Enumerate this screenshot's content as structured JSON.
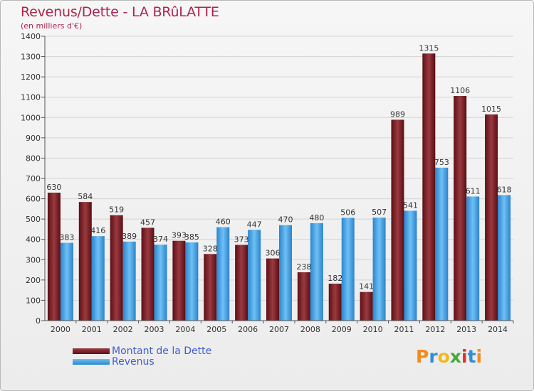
{
  "chart_data": {
    "type": "bar",
    "title": "Revenus/Dette - LA BRûLATTE",
    "subtitle": "(en milliers d'€)",
    "categories": [
      "2000",
      "2001",
      "2002",
      "2003",
      "2004",
      "2005",
      "2006",
      "2007",
      "2008",
      "2009",
      "2010",
      "2011",
      "2012",
      "2013",
      "2014"
    ],
    "series": [
      {
        "name": "Montant de la Dette",
        "color": "#7a1b22",
        "values": [
          630,
          584,
          519,
          457,
          393,
          328,
          373,
          306,
          238,
          182,
          141,
          989,
          1315,
          1106,
          1015
        ]
      },
      {
        "name": "Revenus",
        "color": "#4aa3e6",
        "values": [
          383,
          416,
          389,
          374,
          385,
          460,
          447,
          470,
          480,
          506,
          507,
          541,
          753,
          611,
          618
        ]
      }
    ],
    "ylim": [
      0,
      1400
    ],
    "yticks": [
      0,
      100,
      200,
      300,
      400,
      500,
      600,
      700,
      800,
      900,
      1000,
      1100,
      1200,
      1300,
      1400
    ],
    "grid": true,
    "legend": "bottom-left"
  },
  "logo": {
    "text": "Proxiti",
    "letters": [
      {
        "ch": "P",
        "color": "#f28c1e"
      },
      {
        "ch": "r",
        "color": "#2e8fd6"
      },
      {
        "ch": "o",
        "color": "#f5b81c"
      },
      {
        "ch": "x",
        "color": "#45a93c"
      },
      {
        "ch": "i",
        "color": "#d8332c"
      },
      {
        "ch": "t",
        "color": "#2e8fd6"
      },
      {
        "ch": "i",
        "color": "#f28c1e"
      }
    ]
  }
}
